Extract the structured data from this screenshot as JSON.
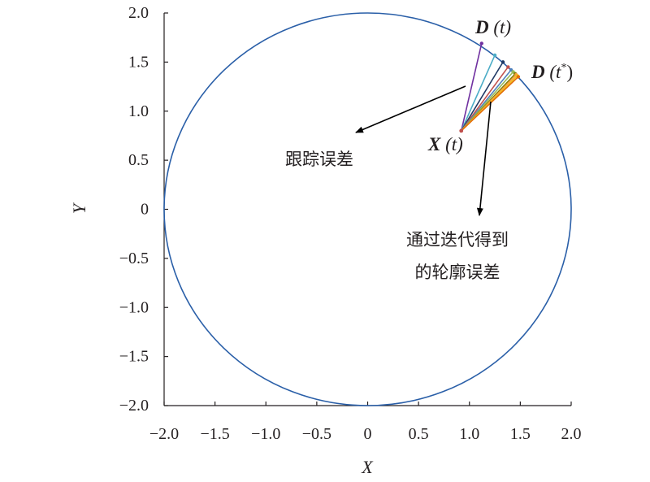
{
  "chart_data": {
    "type": "line",
    "title": "",
    "xlabel": "X",
    "ylabel": "Y",
    "xlim": [
      -2.0,
      2.0
    ],
    "ylim": [
      -2.0,
      2.0
    ],
    "x_ticks": [
      "−2.0",
      "−1.5",
      "−1.0",
      "−0.5",
      "0",
      "0.5",
      "1.0",
      "1.5",
      "2.0"
    ],
    "y_ticks": [
      "2.0",
      "1.5",
      "1.0",
      "0.5",
      "0",
      "−0.5",
      "−1.0",
      "−1.5",
      "−2.0"
    ],
    "x_tick_values": [
      -2.0,
      -1.5,
      -1.0,
      -0.5,
      0,
      0.5,
      1.0,
      1.5,
      2.0
    ],
    "y_tick_values": [
      2.0,
      1.5,
      1.0,
      0.5,
      0,
      -0.5,
      -1.0,
      -1.5,
      -2.0
    ],
    "grid": false,
    "circle": {
      "center": [
        0,
        0
      ],
      "radius": 2.0,
      "color": "#2a5fa8"
    },
    "start_point": {
      "x": 0.92,
      "y": 0.8,
      "color": "#c0504d"
    },
    "iteration_segments": [
      {
        "to": [
          1.12,
          1.69
        ],
        "color": "#7030a0"
      },
      {
        "to": [
          1.25,
          1.57
        ],
        "color": "#4bacc6"
      },
      {
        "to": [
          1.33,
          1.5
        ],
        "color": "#1f3864"
      },
      {
        "to": [
          1.38,
          1.45
        ],
        "color": "#c0504d"
      },
      {
        "to": [
          1.41,
          1.42
        ],
        "color": "#4f81bd"
      },
      {
        "to": [
          1.43,
          1.4
        ],
        "color": "#9bbb59"
      },
      {
        "to": [
          1.45,
          1.38
        ],
        "color": "#808000"
      },
      {
        "to": [
          1.46,
          1.37
        ],
        "color": "#f79646"
      },
      {
        "to": [
          1.47,
          1.36
        ],
        "color": "#f0c419"
      },
      {
        "to": [
          1.48,
          1.35
        ],
        "color": "#e36c09"
      }
    ],
    "annotations": {
      "tracking_error": "跟踪误差",
      "contour_error_line1": "通过迭代得到",
      "contour_error_line2": "的轮廓误差",
      "d_t_bold": "D",
      "d_t_rest": " (t)",
      "d_tstar_bold": "D",
      "d_tstar_open": " (t",
      "d_tstar_sup": "*",
      "d_tstar_close": ")",
      "x_t_bold": "X",
      "x_t_rest": " (t)"
    }
  }
}
